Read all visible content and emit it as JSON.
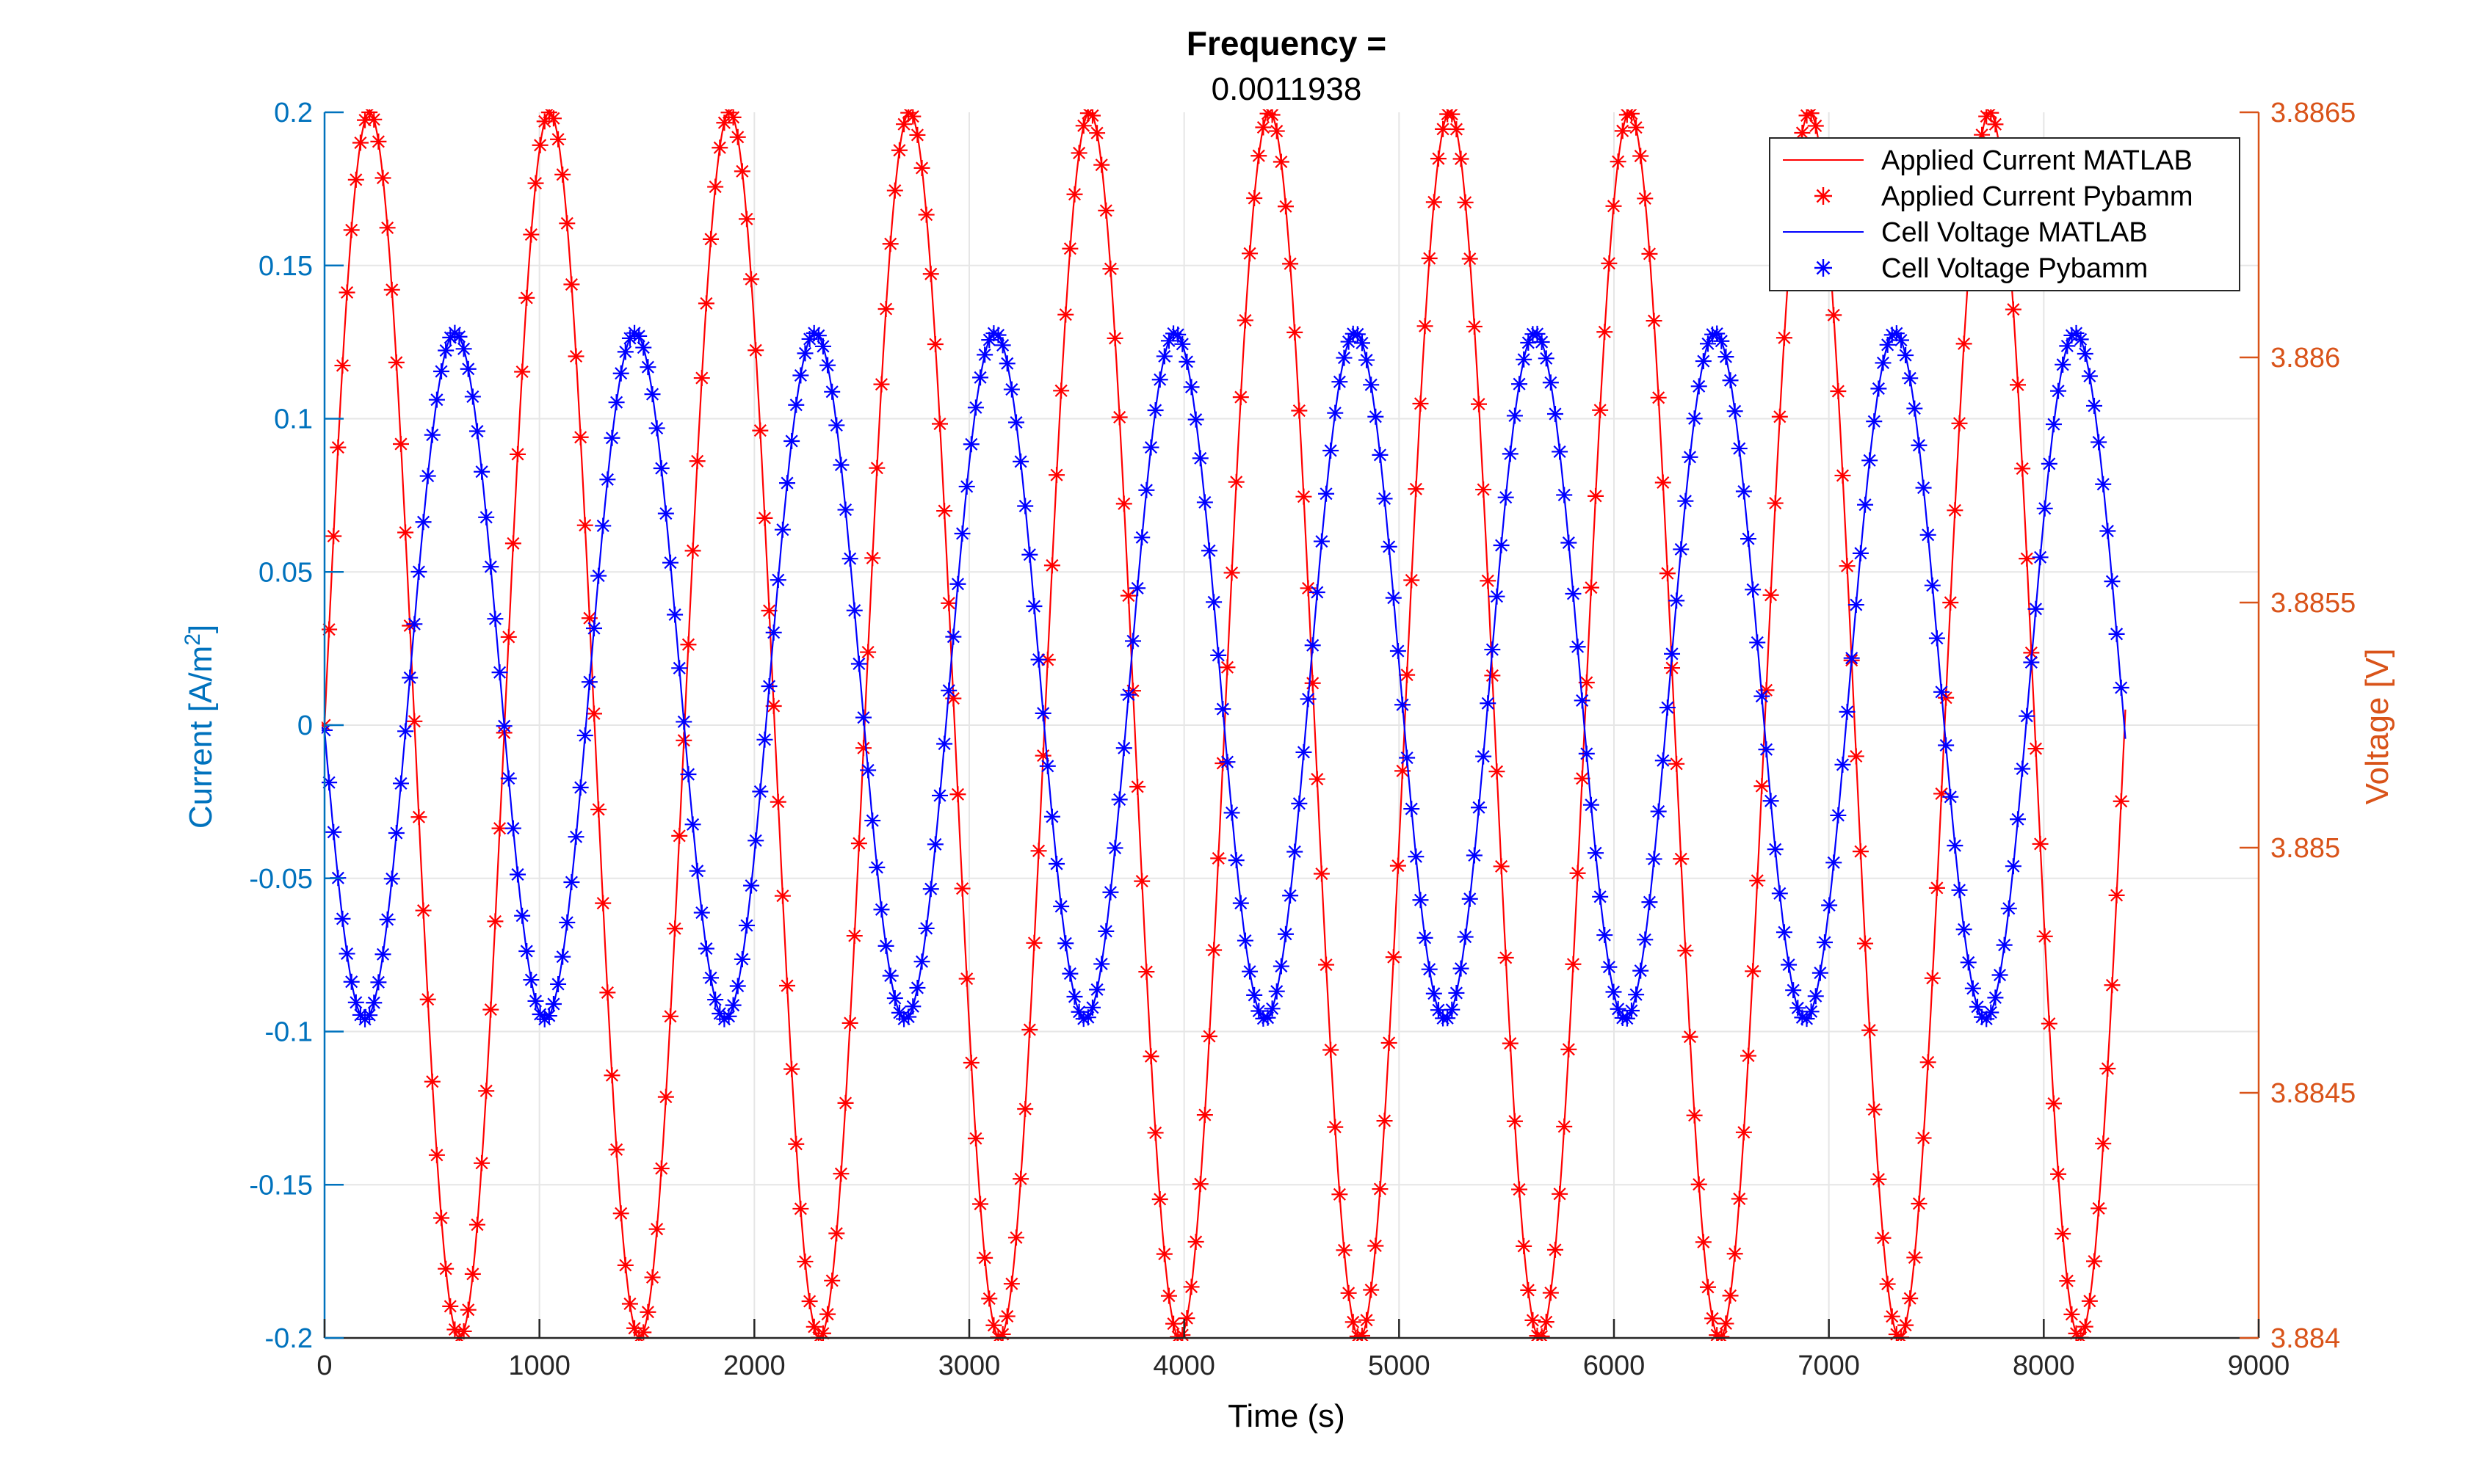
{
  "chart_data": {
    "type": "line",
    "title": "Frequency =",
    "subtitle": "0.0011938",
    "xlabel": "Time (s)",
    "ylabel_left_prefix": "Current  [A/m",
    "ylabel_left_sup": "2",
    "ylabel_left_suffix": "]",
    "ylabel_right": "Voltage [V]",
    "xlim": [
      0,
      9000
    ],
    "ylim_left": [
      -0.2,
      0.2
    ],
    "ylim_right": [
      3.884,
      3.8865
    ],
    "x_ticks": [
      "0",
      "1000",
      "2000",
      "3000",
      "4000",
      "5000",
      "6000",
      "7000",
      "8000",
      "9000"
    ],
    "y_left_ticks": [
      "-0.2",
      "-0.15",
      "-0.1",
      "-0.05",
      "0",
      "0.05",
      "0.1",
      "0.15",
      "0.2"
    ],
    "y_right_ticks": [
      "3.884",
      "3.8845",
      "3.885",
      "3.8855",
      "3.886",
      "3.8865"
    ],
    "grid": true,
    "legend_position": "top-right",
    "colors": {
      "left_axis": "#0072BD",
      "right_axis": "#D95319",
      "current": "#FF0000",
      "voltage": "#0000FF"
    },
    "series": [
      {
        "name": "Applied Current MATLAB",
        "axis": "left",
        "style": "line",
        "color": "#FF0000",
        "model": "sine",
        "amplitude": 0.2,
        "offset": 0.0,
        "frequency_hz": 0.0011938,
        "phase_rad": 0,
        "t_start": 0,
        "t_end": 8380
      },
      {
        "name": "Applied Current Pybamm",
        "axis": "left",
        "style": "markers",
        "marker": "*",
        "color": "#FF0000",
        "model": "sine",
        "amplitude": 0.2,
        "offset": 0.0,
        "frequency_hz": 0.0011938,
        "phase_rad": 0,
        "t_start": 0,
        "t_end": 8380,
        "sample_step_s": 20.9
      },
      {
        "name": "Cell Voltage MATLAB",
        "axis": "right",
        "style": "line",
        "color": "#0000FF",
        "model": "sine",
        "amplitude": 0.0007,
        "offset": 3.88535,
        "frequency_hz": 0.0011938,
        "phase_rad": 3.3,
        "t_start": 0,
        "t_end": 8380
      },
      {
        "name": "Cell Voltage Pybamm",
        "axis": "right",
        "style": "markers",
        "marker": "*",
        "color": "#0000FF",
        "model": "sine",
        "amplitude": 0.0007,
        "offset": 3.88535,
        "frequency_hz": 0.0011938,
        "phase_rad": 3.3,
        "t_start": 0,
        "t_end": 8380,
        "sample_step_s": 20.9
      }
    ]
  }
}
